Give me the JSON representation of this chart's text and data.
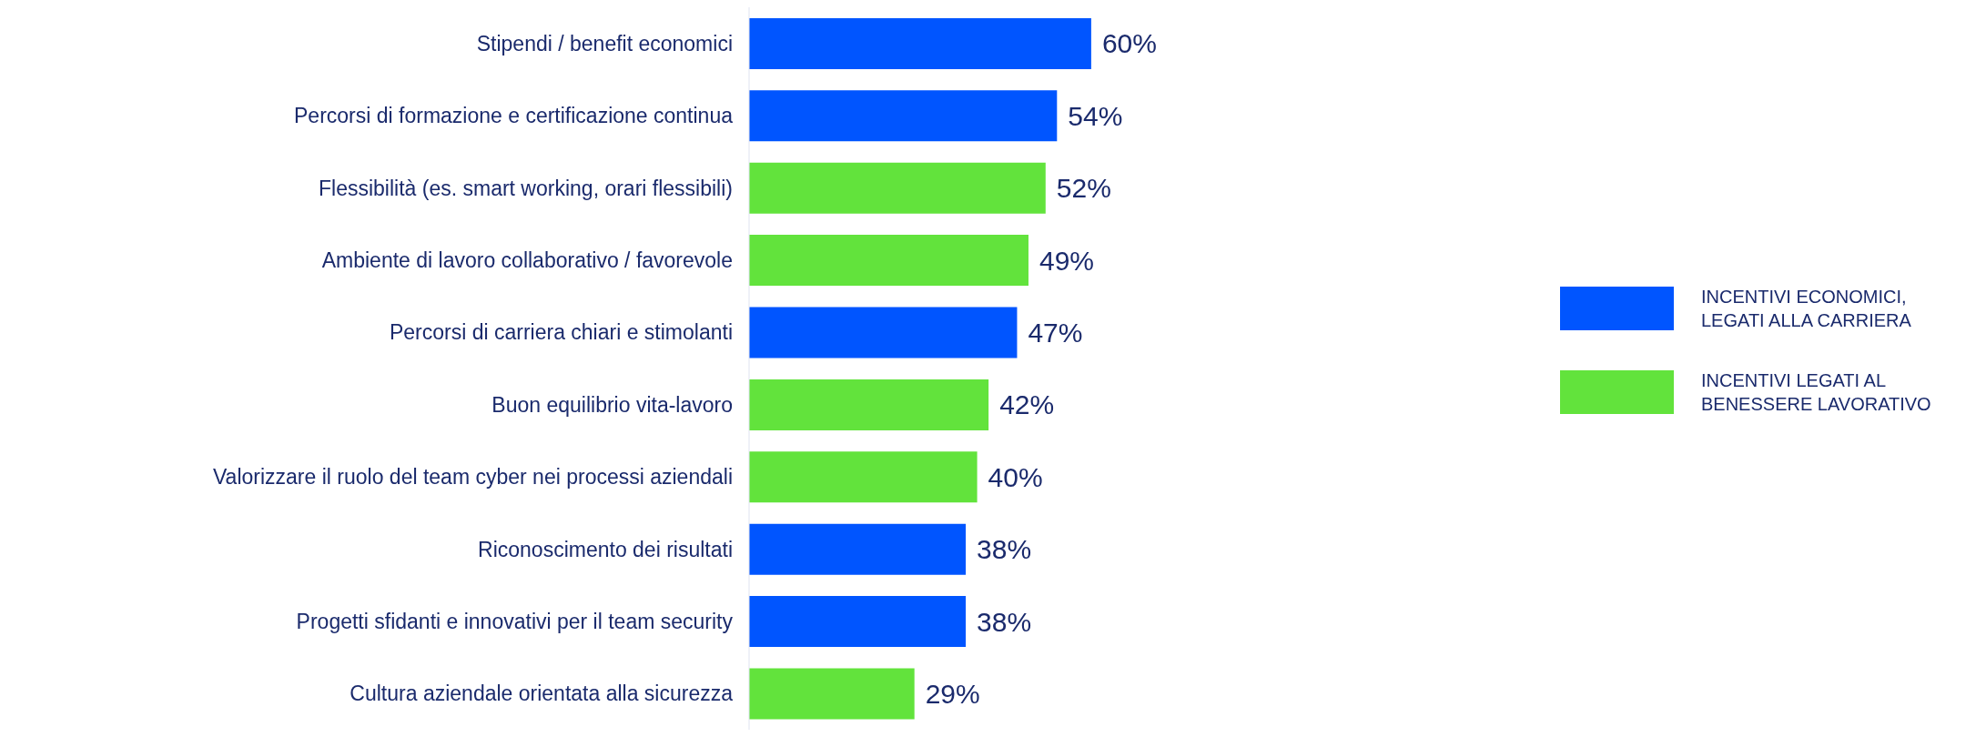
{
  "chart_data": {
    "type": "bar",
    "orientation": "horizontal",
    "stacked": true,
    "legend": "right",
    "categories": [
      "Stipendi / benefit economici",
      "Percorsi di formazione e certificazione continua",
      "Flessibilità (es. smart working, orari flessibili)",
      "Ambiente di lavoro collaborativo / favorevole",
      "Percorsi di carriera chiari e stimolanti",
      "Buon equilibrio vita-lavoro",
      "Valorizzare il ruolo del team cyber nei processi aziendali",
      "Riconoscimento dei risultati",
      "Progetti sfidanti e innovativi per il team security",
      "Cultura aziendale orientata alla sicurezza"
    ],
    "series": [
      {
        "name": "INCENTIVI ECONOMICI, LEGATI ALLA  CARRIERA",
        "color": "#0055ff",
        "values": [
          60,
          54,
          null,
          null,
          47,
          null,
          null,
          38,
          38,
          null
        ],
        "value_labels": [
          "60%",
          "54%",
          null,
          null,
          "47%",
          null,
          null,
          "38%",
          "38%",
          null
        ]
      },
      {
        "name": "INCENTIVI LEGATI AL BENESSERE LAVORATIVO",
        "color": "#62e33c",
        "values": [
          null,
          null,
          52,
          49,
          null,
          42,
          40,
          null,
          null,
          29
        ],
        "value_labels": [
          null,
          null,
          "52%",
          "49%",
          null,
          "42%",
          "40%",
          null,
          null,
          "29%"
        ]
      }
    ]
  }
}
